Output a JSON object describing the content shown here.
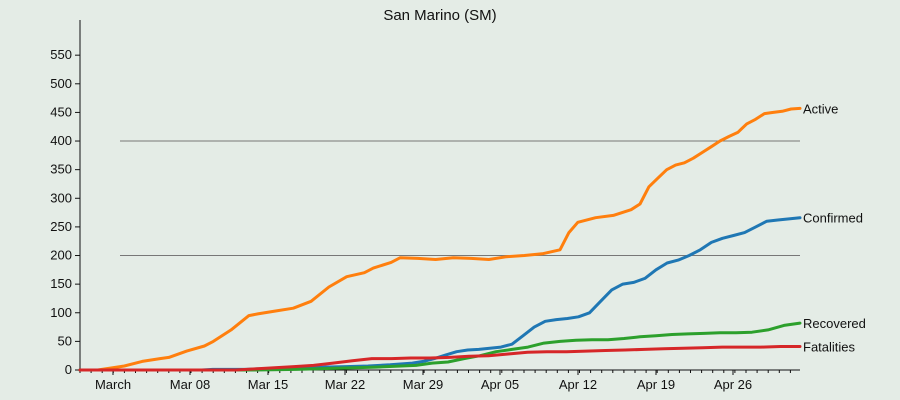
{
  "chart_data": {
    "type": "line",
    "title": "San Marino (SM)",
    "xlabel": "",
    "ylabel": "",
    "ylim": [
      0,
      580
    ],
    "y_ticks": [
      0,
      50,
      100,
      150,
      200,
      250,
      300,
      350,
      400,
      450,
      500,
      550
    ],
    "reference_lines": [
      200,
      400
    ],
    "x_tick_labels": [
      "March",
      "Mar 08",
      "Mar 15",
      "Mar 22",
      "Mar 29",
      "Apr 05",
      "Apr 12",
      "Apr 19",
      "Apr 26"
    ],
    "x_tick_days": [
      1,
      8,
      15,
      22,
      29,
      36,
      43,
      50,
      57
    ],
    "x_range_days": [
      -2,
      63
    ],
    "grid": false,
    "legend": "series labels at right end of lines",
    "series": [
      {
        "name": "Confirmed",
        "color": "#1f77b4",
        "points": [
          [
            -2,
            0
          ],
          [
            0,
            0
          ],
          [
            1,
            0
          ],
          [
            2,
            0
          ],
          [
            3,
            0
          ],
          [
            4,
            0
          ],
          [
            5,
            0
          ],
          [
            7,
            0
          ],
          [
            8,
            0
          ],
          [
            9,
            0
          ],
          [
            10,
            1
          ],
          [
            11,
            1
          ],
          [
            12,
            1
          ],
          [
            13,
            1
          ],
          [
            14,
            2
          ],
          [
            15,
            2
          ],
          [
            16,
            3
          ],
          [
            17,
            3
          ],
          [
            18,
            4
          ],
          [
            19,
            4
          ],
          [
            20,
            5
          ],
          [
            22,
            6
          ],
          [
            24,
            7
          ],
          [
            26,
            9
          ],
          [
            28,
            12
          ],
          [
            29,
            15
          ],
          [
            30,
            20
          ],
          [
            31,
            26
          ],
          [
            32,
            32
          ],
          [
            33,
            35
          ],
          [
            34,
            36
          ],
          [
            35,
            38
          ],
          [
            36,
            40
          ],
          [
            37,
            45
          ],
          [
            38,
            60
          ],
          [
            39,
            75
          ],
          [
            40,
            85
          ],
          [
            41,
            88
          ],
          [
            42,
            90
          ],
          [
            43,
            93
          ],
          [
            44,
            100
          ],
          [
            45,
            120
          ],
          [
            46,
            140
          ],
          [
            47,
            150
          ],
          [
            48,
            153
          ],
          [
            49,
            160
          ],
          [
            50,
            175
          ],
          [
            51,
            187
          ],
          [
            52,
            192
          ],
          [
            53,
            200
          ],
          [
            54,
            210
          ],
          [
            55,
            223
          ],
          [
            56,
            230
          ],
          [
            57,
            235
          ],
          [
            58,
            240
          ],
          [
            59,
            250
          ],
          [
            60,
            260
          ],
          [
            61,
            262
          ],
          [
            62,
            264
          ],
          [
            63,
            266
          ]
        ],
        "values_note": ""
      },
      {
        "name": "Active",
        "color": "#ff7f0e",
        "points": [
          [
            -2,
            0
          ],
          [
            0,
            0
          ],
          [
            3,
            7
          ],
          [
            5,
            15
          ],
          [
            7,
            20
          ],
          [
            8,
            22
          ],
          [
            10,
            33
          ],
          [
            12,
            42
          ],
          [
            13,
            50
          ],
          [
            15,
            70
          ],
          [
            17,
            95
          ],
          [
            18,
            98
          ],
          [
            20,
            103
          ],
          [
            22,
            108
          ],
          [
            24,
            120
          ],
          [
            26,
            145
          ],
          [
            28,
            163
          ],
          [
            30,
            170
          ],
          [
            31,
            178
          ],
          [
            33,
            188
          ],
          [
            34,
            196
          ],
          [
            36,
            195
          ],
          [
            38,
            193
          ],
          [
            40,
            196
          ],
          [
            42,
            195
          ],
          [
            44,
            193
          ],
          [
            46,
            198
          ],
          [
            48,
            200
          ],
          [
            50,
            203
          ],
          [
            52,
            210
          ],
          [
            53,
            240
          ],
          [
            54,
            258
          ],
          [
            56,
            266
          ],
          [
            58,
            270
          ],
          [
            60,
            280
          ],
          [
            61,
            290
          ],
          [
            62,
            320
          ],
          [
            63,
            335
          ],
          [
            64,
            350
          ],
          [
            65,
            358
          ],
          [
            66,
            362
          ],
          [
            67,
            370
          ],
          [
            68,
            380
          ],
          [
            69,
            390
          ],
          [
            70,
            400
          ],
          [
            71,
            408
          ],
          [
            72,
            415
          ],
          [
            73,
            430
          ],
          [
            74,
            438
          ],
          [
            75,
            448
          ],
          [
            76,
            450
          ],
          [
            77,
            452
          ],
          [
            78,
            456
          ],
          [
            79,
            457
          ]
        ]
      },
      {
        "name": "Recovered",
        "color": "#2ca02c",
        "points": [
          [
            -2,
            0
          ],
          [
            20,
            0
          ],
          [
            25,
            1
          ],
          [
            30,
            3
          ],
          [
            35,
            5
          ],
          [
            40,
            8
          ],
          [
            42,
            12
          ],
          [
            44,
            14
          ],
          [
            46,
            20
          ],
          [
            48,
            25
          ],
          [
            50,
            32
          ],
          [
            52,
            36
          ],
          [
            54,
            40
          ],
          [
            56,
            47
          ],
          [
            58,
            50
          ],
          [
            60,
            52
          ],
          [
            62,
            53
          ],
          [
            64,
            53
          ],
          [
            66,
            55
          ],
          [
            68,
            58
          ],
          [
            70,
            60
          ],
          [
            72,
            62
          ],
          [
            74,
            63
          ],
          [
            76,
            64
          ],
          [
            78,
            65
          ],
          [
            80,
            65
          ],
          [
            82,
            66
          ],
          [
            84,
            70
          ],
          [
            86,
            78
          ],
          [
            88,
            82
          ]
        ]
      },
      {
        "name": "Fatalities",
        "color": "#d62728",
        "points": [
          [
            -2,
            0
          ],
          [
            14,
            0
          ],
          [
            16,
            2
          ],
          [
            18,
            4
          ],
          [
            20,
            6
          ],
          [
            22,
            8
          ],
          [
            24,
            12
          ],
          [
            26,
            16
          ],
          [
            28,
            20
          ],
          [
            30,
            20
          ],
          [
            32,
            21
          ],
          [
            34,
            21
          ],
          [
            36,
            22
          ],
          [
            38,
            24
          ],
          [
            40,
            25
          ],
          [
            42,
            28
          ],
          [
            44,
            31
          ],
          [
            46,
            32
          ],
          [
            48,
            32
          ],
          [
            50,
            33
          ],
          [
            52,
            34
          ],
          [
            54,
            35
          ],
          [
            56,
            36
          ],
          [
            58,
            37
          ],
          [
            60,
            38
          ],
          [
            62,
            39
          ],
          [
            64,
            40
          ],
          [
            66,
            40
          ],
          [
            68,
            40
          ],
          [
            70,
            41
          ],
          [
            72,
            41
          ]
        ]
      }
    ]
  }
}
